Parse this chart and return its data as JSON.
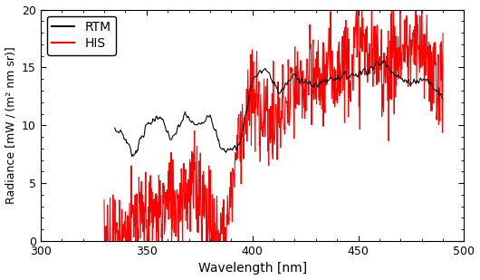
{
  "xlim": [
    300,
    500
  ],
  "ylim": [
    0,
    20
  ],
  "xticks": [
    300,
    350,
    400,
    450,
    500
  ],
  "yticks": [
    0,
    5,
    10,
    15,
    20
  ],
  "xlabel": "Wavelength [nm]",
  "ylabel": "Radiance [mW / (m² nm sr)]",
  "legend_labels": [
    "RTM",
    "HIS"
  ],
  "legend_colors": [
    "black",
    "red"
  ],
  "rtm_color": "black",
  "his_color": "red",
  "figsize": [
    5.3,
    3.09
  ],
  "dpi": 100
}
